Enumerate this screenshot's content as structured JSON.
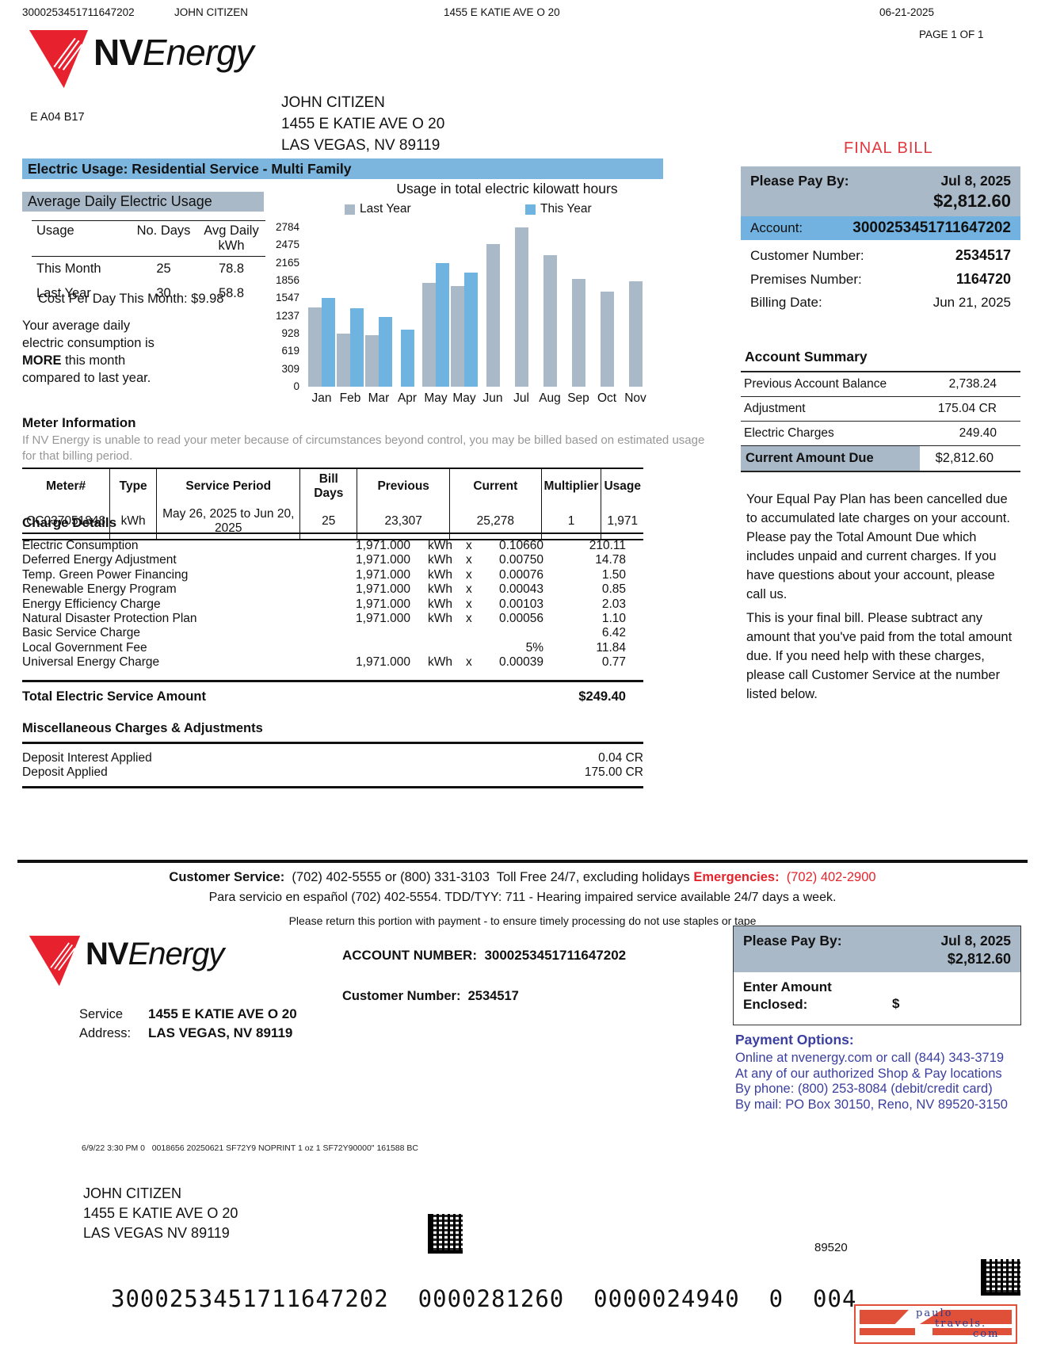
{
  "colors": {
    "header_blue": "#7cb5dd",
    "account_blue": "#72b2e0",
    "panel_gray": "#aab9c8",
    "logo_red": "#e8212e",
    "alert_red": "#e2383f",
    "payment_blue": "#3b3f9e",
    "bar_last_year": "#aab9c8",
    "bar_this_year": "#6fb3e1"
  },
  "meta": {
    "account": "3000253451711647202",
    "name": "JOHN CITIZEN",
    "address": "1455 E KATIE AVE O 20",
    "date": "06-21-2025",
    "page": "PAGE 1 OF 1",
    "mail_code": "E A04 B17"
  },
  "brand": {
    "nv": "NV",
    "energy": "Energy"
  },
  "recipient": {
    "name": "JOHN CITIZEN",
    "address1": "1455 E KATIE AVE O 20",
    "address2": "LAS VEGAS, NV 89119"
  },
  "final_bill": "FINAL BILL",
  "section_header": "Electric Usage: Residential Service - Multi Family",
  "avg_usage": {
    "title": "Average Daily Electric Usage",
    "col_usage": "Usage",
    "col_days": "No. Days",
    "col_avg": "Avg Daily kWh",
    "rows": [
      {
        "label": "This Month",
        "days": "25",
        "avg": "78.8"
      },
      {
        "label": "Last Year",
        "days": "30",
        "avg": "58.8"
      }
    ],
    "cost_per_day": "Cost Per Day This Month: $9.98",
    "note_l1": "Your average daily",
    "note_l2": "electric consumption is",
    "note_bold": "MORE",
    "note_l3": " this month",
    "note_l4": "compared to last year."
  },
  "chart_data": {
    "type": "bar",
    "title": "Usage in total electric kilowatt hours",
    "categories": [
      "Jan",
      "Feb",
      "Mar",
      "Apr",
      "May",
      "May",
      "Jun",
      "Jul",
      "Aug",
      "Sep",
      "Oct",
      "Nov"
    ],
    "series": [
      {
        "name": "Last Year",
        "color": "#aab9c8",
        "values": [
          1390,
          930,
          905,
          null,
          1810,
          1760,
          2500,
          2780,
          2300,
          1890,
          1660,
          1840
        ]
      },
      {
        "name": "This Year",
        "color": "#6fb3e1",
        "values": [
          1550,
          1370,
          1225,
          1000,
          2160,
          1990,
          null,
          null,
          null,
          null,
          null,
          null
        ]
      }
    ],
    "y_ticks": [
      2784,
      2475,
      2165,
      1856,
      1547,
      1237,
      928,
      619,
      309,
      0
    ],
    "ylim": [
      0,
      2784
    ],
    "grid": false,
    "legend_position": "top"
  },
  "meter_info": {
    "heading": "Meter Information",
    "note1": "If NV Energy is unable to read your meter because of circumstances beyond control, you may be billed based on estimated usage",
    "note2": "for that billing period.",
    "headers": [
      "Meter#",
      "Type",
      "Service Period",
      "Bill Days",
      "Previous",
      "Current",
      "Multiplier",
      "Usage"
    ],
    "row": [
      "CC037051848",
      "kWh",
      "May 26, 2025 to Jun 20, 2025",
      "25",
      "23,307",
      "25,278",
      "1",
      "1,971"
    ]
  },
  "charges": {
    "heading": "Charge Details",
    "rows": [
      {
        "label": "Electric Consumption",
        "qty": "1,971.000",
        "unit": "kWh",
        "x": "x",
        "rate": "0.10660",
        "amount": "210.11"
      },
      {
        "label": "Deferred Energy Adjustment",
        "qty": "1,971.000",
        "unit": "kWh",
        "x": "x",
        "rate": "0.00750",
        "amount": "14.78"
      },
      {
        "label": "Temp. Green Power Financing",
        "qty": "1,971.000",
        "unit": "kWh",
        "x": "x",
        "rate": "0.00076",
        "amount": "1.50"
      },
      {
        "label": "Renewable Energy Program",
        "qty": "1,971.000",
        "unit": "kWh",
        "x": "x",
        "rate": "0.00043",
        "amount": "0.85"
      },
      {
        "label": "Energy Efficiency Charge",
        "qty": "1,971.000",
        "unit": "kWh",
        "x": "x",
        "rate": "0.00103",
        "amount": "2.03"
      },
      {
        "label": "Natural Disaster Protection Plan",
        "qty": "1,971.000",
        "unit": "kWh",
        "x": "x",
        "rate": "0.00056",
        "amount": "1.10"
      },
      {
        "label": "Basic Service Charge",
        "qty": "",
        "unit": "",
        "x": "",
        "rate": "",
        "amount": "6.42"
      },
      {
        "label": "Local Government Fee",
        "qty": "",
        "unit": "",
        "x": "",
        "rate": "5%",
        "amount": "11.84"
      },
      {
        "label": "Universal Energy Charge",
        "qty": "1,971.000",
        "unit": "kWh",
        "x": "x",
        "rate": "0.00039",
        "amount": "0.77"
      }
    ],
    "total_label": "Total Electric Service Amount",
    "total_amount": "$249.40"
  },
  "misc": {
    "heading": "Miscellaneous Charges & Adjustments",
    "rows": [
      {
        "label": "Deposit Interest Applied",
        "amount": "0.04 CR"
      },
      {
        "label": "Deposit Applied",
        "amount": "175.00 CR"
      }
    ]
  },
  "right_panel": {
    "pay_by_label": "Please Pay By:",
    "pay_by_date": "Jul 8, 2025",
    "amount_due": "$2,812.60",
    "account_label": "Account:",
    "account_value": "3000253451711647202",
    "rows": [
      {
        "label": "Customer Number:",
        "value": "2534517"
      },
      {
        "label": "Premises Number:",
        "value": "1164720"
      },
      {
        "label": "Billing Date:",
        "value": "Jun 21, 2025"
      }
    ],
    "summary_heading": "Account Summary",
    "summary_rows": [
      {
        "label": "Previous Account Balance",
        "value": "2,738.24"
      },
      {
        "label": "Adjustment",
        "value": "175.04 CR"
      },
      {
        "label": "Electric Charges",
        "value": "249.40"
      }
    ],
    "due_label": "Current Amount Due",
    "due_value": "$2,812.60",
    "para1": "Your Equal Pay Plan has been cancelled due to accumulated late charges on your account.  Please pay the Total Amount Due which includes unpaid and current charges. If you have questions about your account, please call us.",
    "para2": "This is your final bill. Please subtract any amount that you've paid from the total amount due. If you need help with these charges, please call Customer Service at the number listed below."
  },
  "customer_service": {
    "label": "Customer Service:",
    "phones": "  (702) 402-5555 or (800) 331-3103  Toll Free 24/7, excluding holidays ",
    "emergency_label": "Emergencies:",
    "emergency_phone": "  (702) 402-2900",
    "spanish": "Para servicio en español (702) 402-5554. TDD/TYY: 711 - Hearing impaired service available 24/7 days a week.",
    "return_note": "Please return this portion with payment - to ensure timely processing do not use staples or tape"
  },
  "stub": {
    "account_label": "ACCOUNT NUMBER:",
    "account_value": "3000253451711647202",
    "customer_label": "Customer Number:",
    "customer_value": "2534517",
    "service_label1": "Service",
    "service_label2": "Address:",
    "service_line1": "1455 E KATIE AVE O 20",
    "service_line2": "LAS VEGAS, NV 89119",
    "pay_by_label": "Please Pay By:",
    "pay_by_date": "Jul 8, 2025",
    "amount": "$2,812.60",
    "enclosed_label1": "Enter Amount",
    "enclosed_label2": "Enclosed:",
    "dollar": "$",
    "options_heading": "Payment Options:",
    "options": [
      "Online at nvenergy.com or call (844) 343-3719",
      "At any of our authorized Shop & Pay locations",
      "By phone: (800) 253-8084 (debit/credit card)",
      "By mail: PO Box 30150, Reno, NV 89520-3150"
    ]
  },
  "bottom": {
    "fine_print": "6/9/22 3:30 PM 0   0018656 20250621 SF72Y9 NOPRINT 1 oz 1 SF72Y90000\" 161588 BC",
    "name": "JOHN CITIZEN",
    "addr1": "1455 E KATIE AVE O 20",
    "addr2": "LAS VEGAS NV 89119",
    "zip": "89520",
    "ocr_line": "3000253451711647202  0000281260  0000024940  0  004",
    "logo_text1": "paulo",
    "logo_text2": "travels.",
    "logo_text3": "com"
  }
}
